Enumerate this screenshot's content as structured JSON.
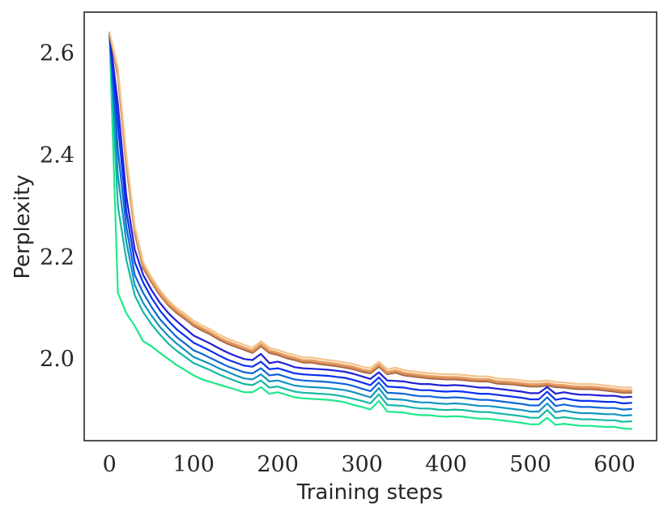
{
  "chart_data": {
    "type": "line",
    "title": "",
    "xlabel": "Training steps",
    "ylabel": "Perplexity",
    "xlim": [
      -30,
      650
    ],
    "ylim": [
      1.84,
      2.68
    ],
    "xticks": [
      0,
      100,
      200,
      300,
      400,
      500,
      600
    ],
    "yticks": [
      2.0,
      2.2,
      2.4,
      2.6
    ],
    "xtick_labels": [
      "0",
      "100",
      "200",
      "300",
      "400",
      "500",
      "600"
    ],
    "ytick_labels": [
      "2.0",
      "2.2",
      "2.4",
      "2.6"
    ],
    "grid": false,
    "legend": "none",
    "x": [
      0,
      10,
      20,
      30,
      40,
      50,
      60,
      70,
      80,
      90,
      100,
      110,
      120,
      130,
      140,
      150,
      160,
      170,
      180,
      190,
      200,
      210,
      220,
      230,
      240,
      250,
      260,
      270,
      280,
      290,
      300,
      310,
      320,
      330,
      340,
      350,
      360,
      370,
      380,
      390,
      400,
      410,
      420,
      430,
      440,
      450,
      460,
      470,
      480,
      490,
      500,
      510,
      520,
      530,
      540,
      550,
      560,
      570,
      580,
      590,
      600,
      610,
      620
    ],
    "series": [
      {
        "color": "#f5c286",
        "values": [
          2.64,
          2.57,
          2.4,
          2.26,
          2.19,
          2.16,
          2.135,
          2.115,
          2.1,
          2.088,
          2.075,
          2.066,
          2.058,
          2.048,
          2.04,
          2.034,
          2.028,
          2.022,
          2.035,
          2.022,
          2.018,
          2.012,
          2.008,
          2.003,
          2.003,
          2.0,
          1.998,
          1.996,
          1.993,
          1.99,
          1.985,
          1.982,
          1.995,
          1.98,
          1.983,
          1.978,
          1.976,
          1.974,
          1.972,
          1.971,
          1.97,
          1.97,
          1.969,
          1.967,
          1.966,
          1.966,
          1.962,
          1.961,
          1.96,
          1.958,
          1.956,
          1.956,
          1.958,
          1.955,
          1.954,
          1.952,
          1.951,
          1.951,
          1.95,
          1.948,
          1.946,
          1.944,
          1.944
        ]
      },
      {
        "color": "#e8a064",
        "values": [
          2.64,
          2.565,
          2.39,
          2.255,
          2.185,
          2.155,
          2.13,
          2.11,
          2.095,
          2.083,
          2.07,
          2.061,
          2.053,
          2.043,
          2.035,
          2.029,
          2.023,
          2.017,
          2.03,
          2.017,
          2.013,
          2.007,
          2.003,
          1.998,
          1.998,
          1.995,
          1.993,
          1.991,
          1.988,
          1.985,
          1.98,
          1.977,
          1.99,
          1.975,
          1.978,
          1.973,
          1.971,
          1.969,
          1.967,
          1.966,
          1.965,
          1.965,
          1.964,
          1.962,
          1.961,
          1.961,
          1.957,
          1.956,
          1.955,
          1.953,
          1.951,
          1.951,
          1.953,
          1.95,
          1.949,
          1.947,
          1.946,
          1.946,
          1.945,
          1.943,
          1.941,
          1.939,
          1.939
        ]
      },
      {
        "color": "#cf8452",
        "values": [
          2.64,
          2.56,
          2.385,
          2.25,
          2.18,
          2.152,
          2.127,
          2.107,
          2.092,
          2.08,
          2.067,
          2.058,
          2.05,
          2.04,
          2.032,
          2.026,
          2.02,
          2.014,
          2.027,
          2.014,
          2.01,
          2.004,
          2.0,
          1.995,
          1.995,
          1.992,
          1.99,
          1.988,
          1.985,
          1.982,
          1.977,
          1.974,
          1.987,
          1.972,
          1.975,
          1.97,
          1.968,
          1.966,
          1.964,
          1.963,
          1.962,
          1.962,
          1.961,
          1.959,
          1.958,
          1.958,
          1.954,
          1.953,
          1.952,
          1.95,
          1.948,
          1.948,
          1.95,
          1.947,
          1.946,
          1.944,
          1.943,
          1.943,
          1.942,
          1.94,
          1.938,
          1.936,
          1.936
        ]
      },
      {
        "color": "#9a5e48",
        "values": [
          2.64,
          2.555,
          2.38,
          2.247,
          2.178,
          2.15,
          2.125,
          2.105,
          2.09,
          2.078,
          2.065,
          2.056,
          2.048,
          2.038,
          2.03,
          2.024,
          2.018,
          2.012,
          2.025,
          2.012,
          2.008,
          2.002,
          1.998,
          1.993,
          1.993,
          1.99,
          1.988,
          1.986,
          1.983,
          1.98,
          1.975,
          1.972,
          1.985,
          1.97,
          1.973,
          1.968,
          1.966,
          1.964,
          1.962,
          1.961,
          1.96,
          1.96,
          1.959,
          1.957,
          1.956,
          1.956,
          1.952,
          1.951,
          1.95,
          1.948,
          1.946,
          1.946,
          1.948,
          1.945,
          1.944,
          1.942,
          1.941,
          1.941,
          1.94,
          1.938,
          1.936,
          1.934,
          1.934
        ]
      },
      {
        "color": "#1f1fd6",
        "values": [
          2.64,
          2.5,
          2.32,
          2.215,
          2.165,
          2.135,
          2.11,
          2.09,
          2.074,
          2.06,
          2.046,
          2.038,
          2.03,
          2.021,
          2.013,
          2.006,
          2.0,
          1.998,
          2.01,
          1.992,
          1.995,
          1.99,
          1.984,
          1.982,
          1.981,
          1.98,
          1.979,
          1.977,
          1.975,
          1.971,
          1.966,
          1.961,
          1.974,
          1.958,
          1.957,
          1.956,
          1.953,
          1.951,
          1.951,
          1.949,
          1.948,
          1.949,
          1.948,
          1.946,
          1.944,
          1.944,
          1.942,
          1.94,
          1.938,
          1.936,
          1.933,
          1.933,
          1.945,
          1.932,
          1.935,
          1.932,
          1.93,
          1.93,
          1.929,
          1.928,
          1.928,
          1.925,
          1.926
        ]
      },
      {
        "color": "#0a2ff0",
        "values": [
          2.64,
          2.46,
          2.29,
          2.19,
          2.15,
          2.12,
          2.095,
          2.075,
          2.058,
          2.045,
          2.032,
          2.024,
          2.016,
          2.007,
          1.999,
          1.993,
          1.987,
          1.985,
          1.995,
          1.98,
          1.982,
          1.977,
          1.972,
          1.97,
          1.969,
          1.968,
          1.967,
          1.965,
          1.963,
          1.959,
          1.954,
          1.949,
          1.964,
          1.946,
          1.945,
          1.944,
          1.941,
          1.939,
          1.939,
          1.937,
          1.936,
          1.937,
          1.936,
          1.934,
          1.932,
          1.932,
          1.93,
          1.928,
          1.926,
          1.924,
          1.921,
          1.921,
          1.936,
          1.92,
          1.923,
          1.92,
          1.918,
          1.918,
          1.917,
          1.916,
          1.916,
          1.913,
          1.914
        ]
      },
      {
        "color": "#0e66d8",
        "values": [
          2.64,
          2.41,
          2.26,
          2.165,
          2.13,
          2.102,
          2.078,
          2.06,
          2.043,
          2.03,
          2.017,
          2.01,
          2.002,
          1.994,
          1.986,
          1.98,
          1.974,
          1.972,
          1.982,
          1.968,
          1.97,
          1.965,
          1.96,
          1.958,
          1.957,
          1.956,
          1.955,
          1.953,
          1.951,
          1.947,
          1.942,
          1.937,
          1.954,
          1.934,
          1.933,
          1.932,
          1.929,
          1.927,
          1.927,
          1.925,
          1.924,
          1.925,
          1.924,
          1.922,
          1.92,
          1.92,
          1.918,
          1.916,
          1.914,
          1.912,
          1.909,
          1.909,
          1.925,
          1.908,
          1.911,
          1.908,
          1.906,
          1.906,
          1.905,
          1.904,
          1.904,
          1.901,
          1.902
        ]
      },
      {
        "color": "#1293c2",
        "values": [
          2.64,
          2.36,
          2.23,
          2.145,
          2.11,
          2.085,
          2.063,
          2.045,
          2.03,
          2.017,
          2.004,
          1.997,
          1.99,
          1.982,
          1.975,
          1.968,
          1.962,
          1.96,
          1.97,
          1.956,
          1.958,
          1.953,
          1.948,
          1.946,
          1.945,
          1.944,
          1.943,
          1.941,
          1.939,
          1.935,
          1.93,
          1.925,
          1.943,
          1.922,
          1.921,
          1.92,
          1.917,
          1.915,
          1.915,
          1.913,
          1.912,
          1.913,
          1.912,
          1.91,
          1.908,
          1.908,
          1.906,
          1.904,
          1.902,
          1.9,
          1.897,
          1.897,
          1.913,
          1.896,
          1.899,
          1.896,
          1.894,
          1.894,
          1.893,
          1.892,
          1.892,
          1.889,
          1.89
        ]
      },
      {
        "color": "#15b8a6",
        "values": [
          2.64,
          2.3,
          2.195,
          2.125,
          2.092,
          2.068,
          2.048,
          2.03,
          2.016,
          2.004,
          1.992,
          1.985,
          1.978,
          1.97,
          1.963,
          1.957,
          1.951,
          1.949,
          1.958,
          1.944,
          1.946,
          1.941,
          1.936,
          1.934,
          1.933,
          1.932,
          1.931,
          1.929,
          1.926,
          1.922,
          1.918,
          1.913,
          1.931,
          1.91,
          1.909,
          1.908,
          1.905,
          1.903,
          1.903,
          1.901,
          1.9,
          1.901,
          1.9,
          1.898,
          1.896,
          1.896,
          1.894,
          1.892,
          1.89,
          1.888,
          1.885,
          1.885,
          1.9,
          1.884,
          1.886,
          1.884,
          1.882,
          1.882,
          1.881,
          1.88,
          1.88,
          1.877,
          1.878
        ]
      },
      {
        "color": "#1fe88a",
        "values": [
          2.64,
          2.13,
          2.09,
          2.065,
          2.035,
          2.025,
          2.012,
          2.0,
          1.988,
          1.978,
          1.968,
          1.96,
          1.955,
          1.95,
          1.945,
          1.94,
          1.935,
          1.935,
          1.945,
          1.932,
          1.935,
          1.93,
          1.925,
          1.923,
          1.922,
          1.921,
          1.92,
          1.918,
          1.915,
          1.91,
          1.906,
          1.901,
          1.918,
          1.897,
          1.896,
          1.895,
          1.892,
          1.89,
          1.89,
          1.888,
          1.887,
          1.888,
          1.887,
          1.885,
          1.883,
          1.883,
          1.881,
          1.879,
          1.877,
          1.875,
          1.872,
          1.872,
          1.885,
          1.871,
          1.873,
          1.871,
          1.869,
          1.869,
          1.868,
          1.867,
          1.867,
          1.864,
          1.863
        ]
      }
    ]
  }
}
